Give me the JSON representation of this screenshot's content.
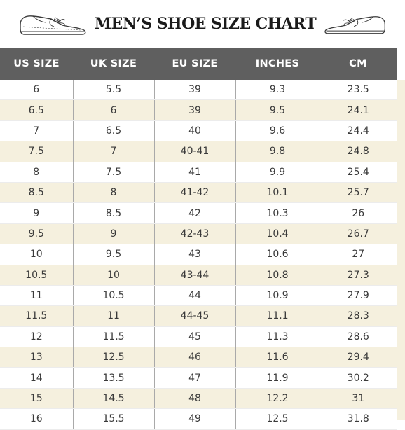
{
  "header": {
    "title": "MEN’S SHOE SIZE CHART",
    "left_icon": "shoe-icon",
    "right_icon": "shoe-icon"
  },
  "colors": {
    "header_bg": "#5f5f5f",
    "stripe": "#f5f0de",
    "text": "#3a3a3a"
  },
  "table": {
    "columns": [
      "US SIZE",
      "UK SIZE",
      "EU SIZE",
      "INCHES",
      "CM"
    ],
    "rows": [
      [
        "6",
        "5.5",
        "39",
        "9.3",
        "23.5"
      ],
      [
        "6.5",
        "6",
        "39",
        "9.5",
        "24.1"
      ],
      [
        "7",
        "6.5",
        "40",
        "9.6",
        "24.4"
      ],
      [
        "7.5",
        "7",
        "40-41",
        "9.8",
        "24.8"
      ],
      [
        "8",
        "7.5",
        "41",
        "9.9",
        "25.4"
      ],
      [
        "8.5",
        "8",
        "41-42",
        "10.1",
        "25.7"
      ],
      [
        "9",
        "8.5",
        "42",
        "10.3",
        "26"
      ],
      [
        "9.5",
        "9",
        "42-43",
        "10.4",
        "26.7"
      ],
      [
        "10",
        "9.5",
        "43",
        "10.6",
        "27"
      ],
      [
        "10.5",
        "10",
        "43-44",
        "10.8",
        "27.3"
      ],
      [
        "11",
        "10.5",
        "44",
        "10.9",
        "27.9"
      ],
      [
        "11.5",
        "11",
        "44-45",
        "11.1",
        "28.3"
      ],
      [
        "12",
        "11.5",
        "45",
        "11.3",
        "28.6"
      ],
      [
        "13",
        "12.5",
        "46",
        "11.6",
        "29.4"
      ],
      [
        "14",
        "13.5",
        "47",
        "11.9",
        "30.2"
      ],
      [
        "15",
        "14.5",
        "48",
        "12.2",
        "31"
      ],
      [
        "16",
        "15.5",
        "49",
        "12.5",
        "31.8"
      ]
    ]
  }
}
